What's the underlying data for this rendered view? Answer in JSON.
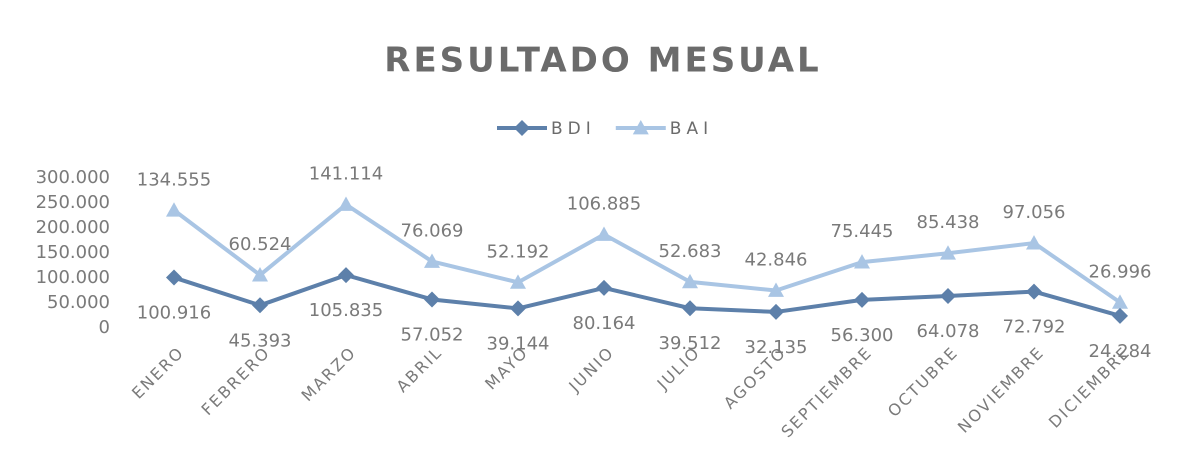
{
  "chart_data": {
    "type": "line",
    "stacked": true,
    "title": "RESULTADO MESUAL",
    "categories": [
      "ENERO",
      "FEBRERO",
      "MARZO",
      "ABRIL",
      "MAYO",
      "JUNIO",
      "JULIO",
      "AGOSTO",
      "SEPTIEMBRE",
      "OCTUBRE",
      "NOVIEMBRE",
      "DICIEMBRE"
    ],
    "series": [
      {
        "name": "BDI",
        "color": "#5d80aa",
        "marker": "diamond",
        "values": [
          100916,
          45393,
          105835,
          57052,
          39144,
          80164,
          39512,
          32135,
          56300,
          64078,
          72792,
          24284
        ],
        "value_labels": [
          "100.916",
          "45.393",
          "105.835",
          "57.052",
          "39.144",
          "80.164",
          "39.512",
          "32.135",
          "56.300",
          "64.078",
          "72.792",
          "24.284"
        ]
      },
      {
        "name": "BAI",
        "color": "#a9c5e4",
        "marker": "triangle",
        "values": [
          134555,
          60524,
          141114,
          76069,
          52192,
          106885,
          52683,
          42846,
          75445,
          85438,
          97056,
          26996
        ],
        "value_labels": [
          "134.555",
          "60.524",
          "141.114",
          "76.069",
          "52.192",
          "106.885",
          "52.683",
          "42.846",
          "75.445",
          "85.438",
          "97.056",
          "26.996"
        ]
      }
    ],
    "ylim": [
      0,
      300000
    ],
    "yticks": [
      0,
      {
        "value": 50000,
        "label": "50.000"
      },
      {
        "value": 100000,
        "label": "100.000"
      },
      {
        "value": 150000,
        "label": "150.000"
      },
      {
        "value": 200000,
        "label": "200.000"
      },
      {
        "value": 250000,
        "label": "250.000"
      },
      {
        "value": 300000,
        "label": "300.000"
      }
    ],
    "grid": false,
    "legend": "top"
  }
}
